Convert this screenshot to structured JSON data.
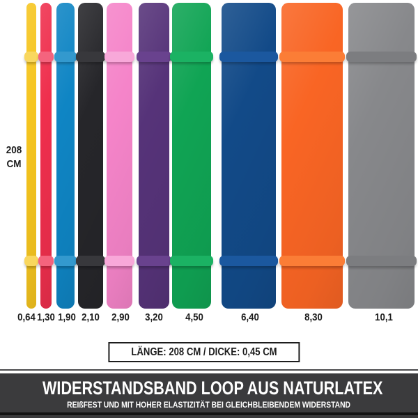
{
  "page": {
    "background": "#FFFFFF"
  },
  "left_axis": {
    "length_value": "208",
    "length_unit": "CM"
  },
  "bands": [
    {
      "name": "yellow",
      "width_label": "0,64",
      "color": "#F6C51F",
      "clip_color": "#F9D75E"
    },
    {
      "name": "red",
      "width_label": "1,30",
      "color": "#EF2F4D",
      "clip_color": "#F4647E"
    },
    {
      "name": "blue",
      "width_label": "1,90",
      "color": "#0F85C4",
      "clip_color": "#3399CE"
    },
    {
      "name": "black",
      "width_label": "2,10",
      "color": "#26262A",
      "clip_color": "#38383C"
    },
    {
      "name": "pink",
      "width_label": "2,90",
      "color": "#F584C9",
      "clip_color": "#F8A8D9"
    },
    {
      "name": "purple",
      "width_label": "3,20",
      "color": "#563379",
      "clip_color": "#69428E"
    },
    {
      "name": "green",
      "width_label": "4,50",
      "color": "#10A454",
      "clip_color": "#1BB263"
    },
    {
      "name": "navy",
      "width_label": "6,40",
      "color": "#124A88",
      "clip_color": "#1B589F"
    },
    {
      "name": "orange",
      "width_label": "8,30",
      "color": "#F96524",
      "clip_color": "#FB7D36"
    },
    {
      "name": "gray",
      "width_label": "10,1",
      "color": "#87888B",
      "clip_color": "#7C7D80"
    }
  ],
  "spec_box": {
    "text": "LÄNGE: 208 CM / DICKE: 0,45 CM"
  },
  "banner": {
    "title": "WIDERSTANDSBAND LOOP AUS NATURLATEX",
    "subtitle": "REIßFEST UND MIT HOHER ELASTIZITÄT BEI GLEICHBLEIBENDEM WIDERSTAND",
    "background": "#3B3B3D",
    "text_color": "#FFFFFF"
  }
}
